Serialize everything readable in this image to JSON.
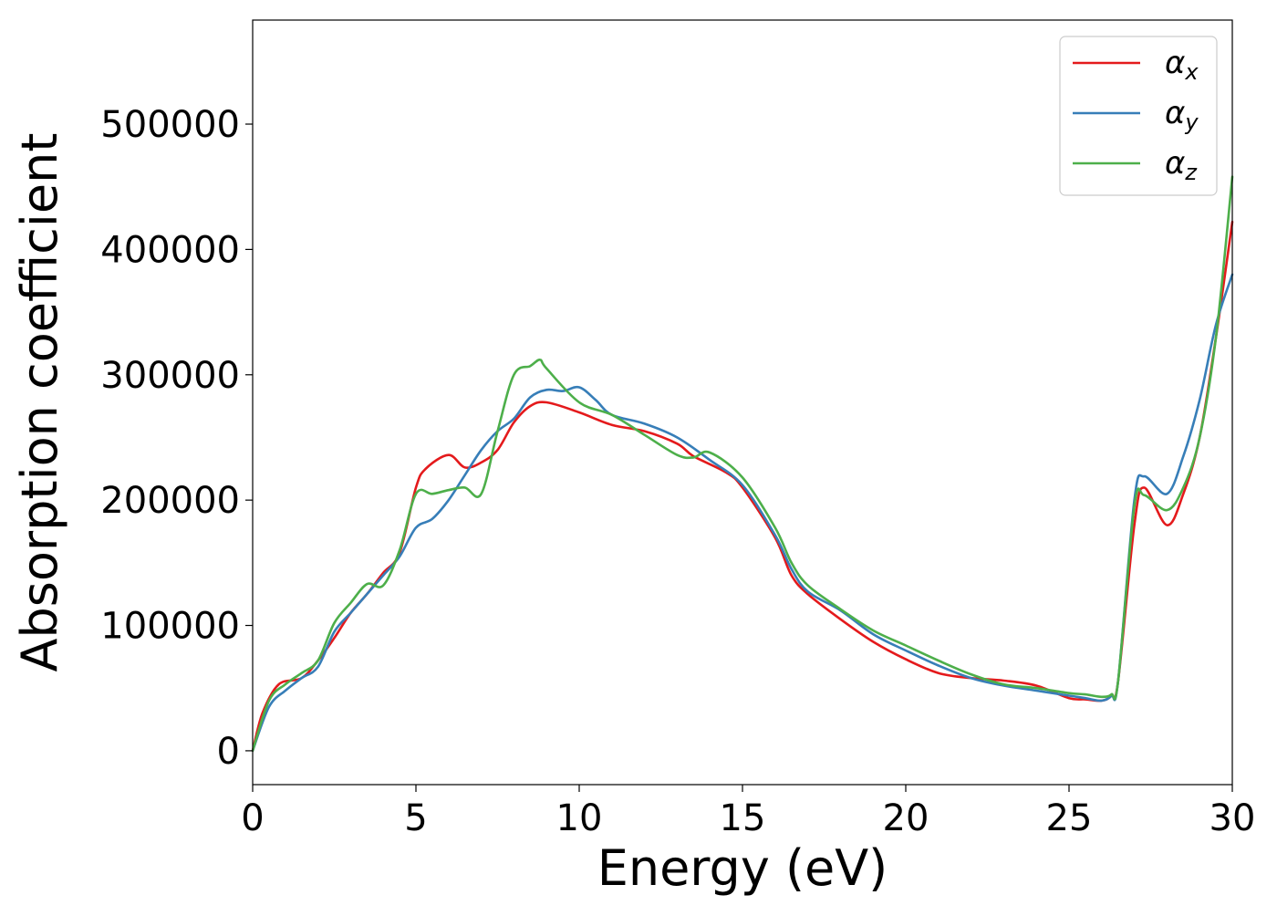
{
  "chart_data": {
    "type": "line",
    "title": "",
    "xlabel": "Energy (eV)",
    "ylabel": "Absorption coefficient",
    "xlim": [
      0,
      30
    ],
    "ylim": [
      -27000,
      583000
    ],
    "xticks": [
      0,
      5,
      10,
      15,
      20,
      25,
      30
    ],
    "yticks": [
      0,
      100000,
      200000,
      300000,
      400000,
      500000
    ],
    "grid": false,
    "legend_position": "top-right",
    "legend": [
      {
        "symbol": "α",
        "subscript": "x",
        "color": "#e41a1c"
      },
      {
        "symbol": "α",
        "subscript": "y",
        "color": "#377eb8"
      },
      {
        "symbol": "α",
        "subscript": "z",
        "color": "#4daf4a"
      }
    ],
    "series": [
      {
        "name": "αx",
        "color": "#e41a1c",
        "x": [
          0,
          0.3,
          0.8,
          1.5,
          2.0,
          2.5,
          3.0,
          3.5,
          4.0,
          4.5,
          5.0,
          5.3,
          6.0,
          6.5,
          7.0,
          7.5,
          8.0,
          8.5,
          9.0,
          10.0,
          11.0,
          12.0,
          13.0,
          13.5,
          14.5,
          15.0,
          16.0,
          16.5,
          17.0,
          18.0,
          19.0,
          20.0,
          21.0,
          22.0,
          23.0,
          24.0,
          25.0,
          25.5,
          26.0,
          26.3,
          26.5,
          27.0,
          27.3,
          28.0,
          28.5,
          29.0,
          29.5,
          30.0
        ],
        "y": [
          0,
          30000,
          53000,
          58000,
          72000,
          90000,
          110000,
          125000,
          142000,
          158000,
          210000,
          225000,
          236000,
          226000,
          230000,
          240000,
          262000,
          275000,
          278000,
          270000,
          260000,
          255000,
          245000,
          235000,
          222000,
          210000,
          170000,
          140000,
          125000,
          105000,
          87000,
          73000,
          62000,
          58000,
          56000,
          52000,
          42000,
          41000,
          40000,
          44000,
          55000,
          180000,
          210000,
          180000,
          205000,
          250000,
          330000,
          422000
        ]
      },
      {
        "name": "αy",
        "color": "#377eb8",
        "x": [
          0,
          0.5,
          1.0,
          1.5,
          2.0,
          2.5,
          3.0,
          3.5,
          4.0,
          4.5,
          5.0,
          5.5,
          6.0,
          6.5,
          7.0,
          7.5,
          8.0,
          8.5,
          9.0,
          9.5,
          10.0,
          10.5,
          11.0,
          12.0,
          13.0,
          14.0,
          15.0,
          16.0,
          16.5,
          17.0,
          18.0,
          19.0,
          20.0,
          21.0,
          22.0,
          23.0,
          24.0,
          25.0,
          25.5,
          26.0,
          26.3,
          26.5,
          27.0,
          27.3,
          28.0,
          28.5,
          29.0,
          29.5,
          30.0
        ],
        "y": [
          0,
          35000,
          48000,
          58000,
          67000,
          95000,
          110000,
          125000,
          140000,
          155000,
          178000,
          185000,
          200000,
          220000,
          240000,
          255000,
          265000,
          282000,
          288000,
          287000,
          290000,
          280000,
          268000,
          261000,
          250000,
          232000,
          212000,
          172000,
          145000,
          127000,
          112000,
          93000,
          80000,
          68000,
          58000,
          52000,
          48000,
          44000,
          42000,
          40000,
          44000,
          55000,
          200000,
          219000,
          205000,
          235000,
          280000,
          340000,
          380000
        ]
      },
      {
        "name": "αz",
        "color": "#4daf4a",
        "x": [
          0,
          0.5,
          1.0,
          1.5,
          2.0,
          2.5,
          3.0,
          3.5,
          4.0,
          4.5,
          5.0,
          5.5,
          6.0,
          6.5,
          7.0,
          7.5,
          8.0,
          8.5,
          8.8,
          9.0,
          10.0,
          11.0,
          12.0,
          13.0,
          13.5,
          14.0,
          15.0,
          16.0,
          16.5,
          17.0,
          18.0,
          19.0,
          20.0,
          21.0,
          22.0,
          23.0,
          24.0,
          25.0,
          25.5,
          26.0,
          26.3,
          26.5,
          27.0,
          27.3,
          28.0,
          28.5,
          29.0,
          29.5,
          30.0
        ],
        "y": [
          0,
          40000,
          53000,
          62000,
          72000,
          102000,
          118000,
          133000,
          132000,
          160000,
          205000,
          205000,
          208000,
          210000,
          205000,
          255000,
          300000,
          307000,
          312000,
          305000,
          278000,
          268000,
          252000,
          236000,
          234000,
          238000,
          218000,
          178000,
          150000,
          132000,
          113000,
          96000,
          84000,
          72000,
          61000,
          53000,
          50000,
          46000,
          45000,
          43000,
          45000,
          55000,
          195000,
          204000,
          192000,
          210000,
          250000,
          330000,
          458000
        ]
      }
    ]
  }
}
